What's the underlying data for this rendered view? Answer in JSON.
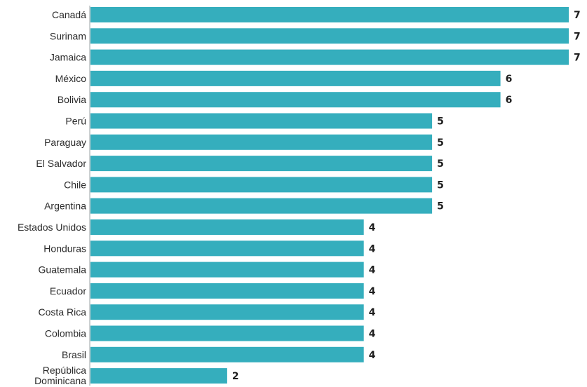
{
  "chart_data": {
    "type": "bar",
    "orientation": "horizontal",
    "categories": [
      "Canadá",
      "Surinam",
      "Jamaica",
      "México",
      "Bolivia",
      "Perú",
      "Paraguay",
      "El Salvador",
      "Chile",
      "Argentina",
      "Estados Unidos",
      "Honduras",
      "Guatemala",
      "Ecuador",
      "Costa Rica",
      "Colombia",
      "Brasil",
      "República Dominicana"
    ],
    "values": [
      7,
      7,
      7,
      6,
      6,
      5,
      5,
      5,
      5,
      5,
      4,
      4,
      4,
      4,
      4,
      4,
      4,
      2
    ],
    "value_labels": [
      "7",
      "7",
      "7",
      "6",
      "6",
      "5",
      "5",
      "5",
      "5",
      "5",
      "4",
      "4",
      "4",
      "4",
      "4",
      "4",
      "4",
      "2"
    ],
    "bar_color": "#35aebd",
    "title": "",
    "xlabel": "",
    "ylabel": "",
    "xlim": [
      0,
      7
    ],
    "grid": false,
    "legend": "none"
  }
}
